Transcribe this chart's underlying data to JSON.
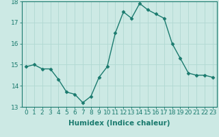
{
  "xlabel": "Humidex (Indice chaleur)",
  "x_values": [
    0,
    1,
    2,
    3,
    4,
    5,
    6,
    7,
    8,
    9,
    10,
    11,
    12,
    13,
    14,
    15,
    16,
    17,
    18,
    19,
    20,
    21,
    22,
    23
  ],
  "y_values": [
    14.9,
    15.0,
    14.8,
    14.8,
    14.3,
    13.7,
    13.6,
    13.2,
    13.5,
    14.4,
    14.9,
    16.5,
    17.5,
    17.2,
    17.9,
    17.6,
    17.4,
    17.2,
    16.0,
    15.3,
    14.6,
    14.5,
    14.5,
    14.4
  ],
  "line_color": "#1a7a6e",
  "marker": "D",
  "marker_size": 2.5,
  "background_color": "#cce9e4",
  "grid_color": "#b0d8d2",
  "ylim": [
    13.0,
    18.0
  ],
  "yticks": [
    13,
    14,
    15,
    16,
    17,
    18
  ],
  "xlim": [
    -0.5,
    23.5
  ],
  "tick_fontsize": 6.5,
  "xlabel_fontsize": 7.5
}
